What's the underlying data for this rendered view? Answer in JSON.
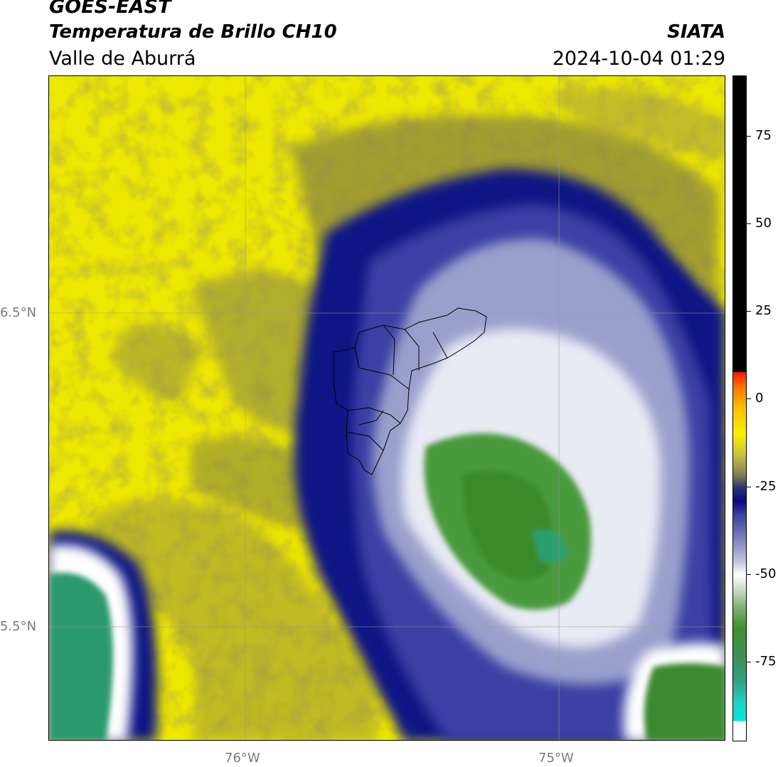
{
  "header": {
    "satellite": "GOES-EAST",
    "product": "Temperatura de Brillo CH10",
    "region": "Valle de Aburrá",
    "agency": "SIATA",
    "timestamp": "2024-10-04 01:29"
  },
  "map": {
    "lat_labels": [
      "6.5°N",
      "5.5°N"
    ],
    "lon_labels": [
      "76°W",
      "75°W"
    ]
  },
  "colorbar": {
    "ticks": [
      "75",
      "50",
      "25",
      "0",
      "-25",
      "-50",
      "-75"
    ]
  },
  "colors": {
    "warm_yellow": "#f4ec00",
    "olive": "#8a8640",
    "dark_blue": "#0a0a80",
    "lavender": "#9aa0cc",
    "white": "#ffffff",
    "green": "#3c8c2c",
    "teal": "#2aa070"
  }
}
